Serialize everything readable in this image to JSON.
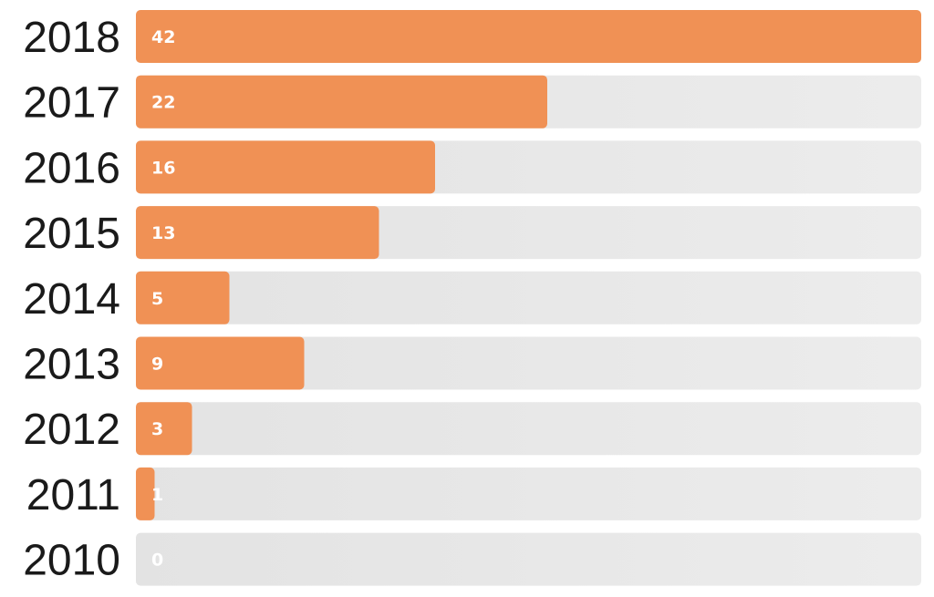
{
  "chart_data": {
    "type": "bar",
    "orientation": "horizontal",
    "title": "",
    "xlabel": "",
    "ylabel": "",
    "categories": [
      "2018",
      "2017",
      "2016",
      "2015",
      "2014",
      "2013",
      "2012",
      "2011",
      "2010"
    ],
    "values": [
      42,
      22,
      16,
      13,
      5,
      9,
      3,
      1,
      0
    ],
    "xlim": [
      0,
      42
    ],
    "grid": false,
    "legend": "none",
    "data_labels": true
  },
  "colors": {
    "bar": "#f09155",
    "track": "#e6e6e6",
    "category_text": "#1a1a1a",
    "value_text": "#ffffff"
  }
}
